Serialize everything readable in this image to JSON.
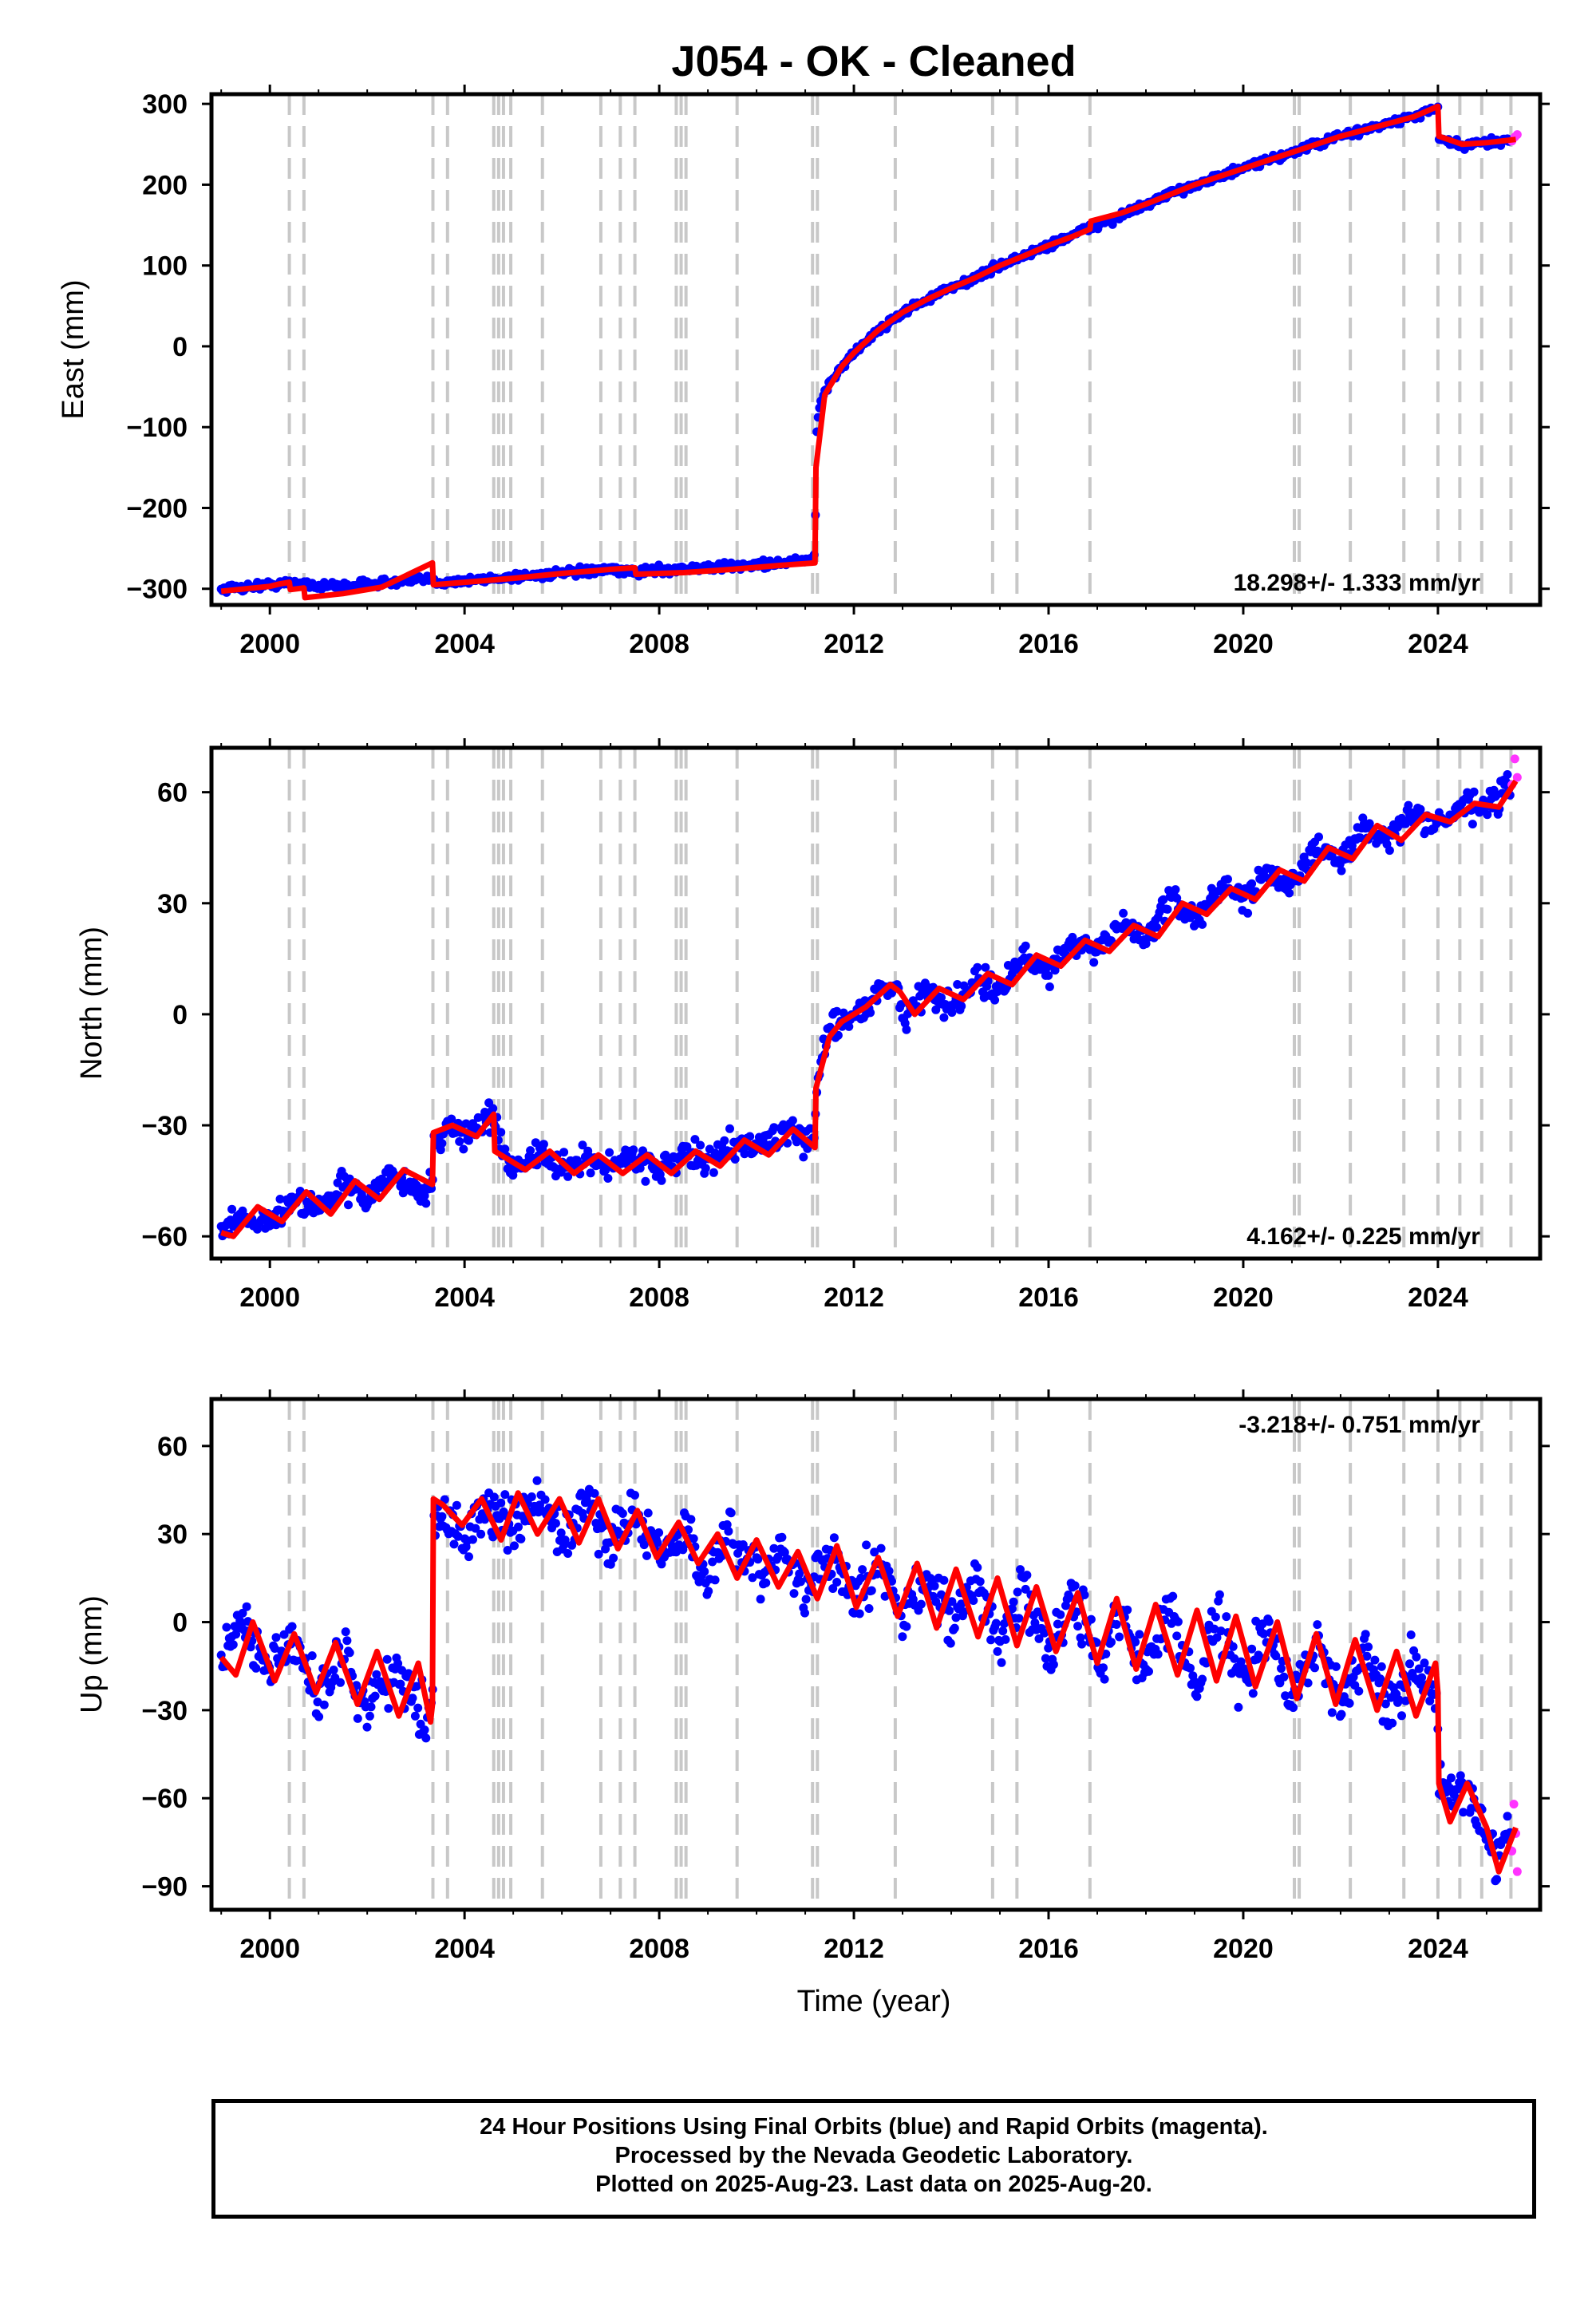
{
  "chart_data": {
    "type": "scatter",
    "title": "J054  - OK - Cleaned",
    "xlabel": "Time (year)",
    "xlim": [
      1998.8,
      2026.1
    ],
    "xticks": [
      "2000",
      "2004",
      "2008",
      "2012",
      "2016",
      "2020",
      "2024"
    ],
    "xtick_values": [
      2000,
      2004,
      2008,
      2012,
      2016,
      2020,
      2024
    ],
    "equipment_changes": [
      2000.4,
      2000.7,
      2003.35,
      2003.65,
      2004.6,
      2004.7,
      2004.8,
      2004.95,
      2005.6,
      2006.8,
      2007.2,
      2007.5,
      2008.35,
      2008.45,
      2008.55,
      2009.6,
      2011.15,
      2011.25,
      2012.85,
      2014.85,
      2015.35,
      2016.85,
      2021.05,
      2021.15,
      2022.2,
      2023.3,
      2024.0,
      2024.45,
      2024.9,
      2025.5
    ],
    "legend": "none",
    "panels": [
      {
        "name": "east",
        "ylabel": "East (mm)",
        "ylim": [
          -320,
          312
        ],
        "yticks": [
          "300",
          "200",
          "100",
          "0",
          "−100",
          "−200",
          "−300"
        ],
        "ytick_values": [
          300,
          200,
          100,
          0,
          -100,
          -200,
          -300
        ],
        "rate_text": "18.298+/- 1.333 mm/yr",
        "rate_position": "bottom-right",
        "series": [
          {
            "name": "Final Orbits (blue)",
            "color": "#0000ff",
            "x": [
              1999.0,
              1999.5,
              2000.0,
              2000.5,
              2000.75,
              2001.0,
              2001.5,
              2002.0,
              2002.5,
              2003.0,
              2003.34,
              2003.36,
              2004.0,
              2004.5,
              2005.0,
              2005.5,
              2006.0,
              2006.5,
              2007.0,
              2007.5,
              2008.0,
              2008.5,
              2009.0,
              2009.5,
              2010.0,
              2010.5,
              2011.0,
              2011.2,
              2011.23,
              2011.3,
              2011.5,
              2011.75,
              2012.0,
              2012.5,
              2013.0,
              2013.5,
              2014.0,
              2014.5,
              2015.0,
              2015.5,
              2016.0,
              2016.5,
              2017.0,
              2017.5,
              2018.0,
              2018.5,
              2019.0,
              2019.5,
              2020.0,
              2020.5,
              2021.0,
              2021.5,
              2022.0,
              2022.5,
              2023.0,
              2023.5,
              2024.0,
              2024.02,
              2024.5,
              2025.0,
              2025.5
            ],
            "y": [
              -300,
              -298,
              -295,
              -293,
              -293,
              -297,
              -296,
              -294,
              -292,
              -290,
              -288,
              -292,
              -290,
              -288,
              -285,
              -283,
              -281,
              -279,
              -277,
              -279,
              -277,
              -275,
              -274,
              -272,
              -270,
              -268,
              -265,
              -262,
              -105,
              -75,
              -45,
              -25,
              -8,
              20,
              42,
              58,
              72,
              85,
              100,
              112,
              125,
              138,
              150,
              162,
              175,
              188,
              200,
              210,
              220,
              230,
              240,
              250,
              260,
              268,
              276,
              284,
              295,
              255,
              248,
              252,
              256
            ]
          },
          {
            "name": "Rapid Orbits (magenta)",
            "color": "#ff33ff",
            "x": [
              2025.52,
              2025.58,
              2025.63
            ],
            "y": [
              254,
              259,
              262
            ]
          },
          {
            "name": "model",
            "color": "#ff0000",
            "x": [
              1999.0,
              2000.0,
              2000.2,
              2000.4,
              2000.42,
              2000.7,
              2000.72,
              2001.5,
              2002.3,
              2003.34,
              2003.36,
              2004.0,
              2005.0,
              2006.0,
              2007.0,
              2007.5,
              2007.52,
              2008.5,
              2009.5,
              2010.5,
              2011.2,
              2011.22,
              2011.4,
              2011.75,
              2012.0,
              2012.5,
              2013.0,
              2013.5,
              2014.0,
              2014.5,
              2015.0,
              2015.5,
              2016.0,
              2016.5,
              2016.85,
              2016.87,
              2017.5,
              2018.0,
              2018.5,
              2019.0,
              2019.5,
              2020.0,
              2020.5,
              2021.0,
              2021.5,
              2022.0,
              2022.5,
              2023.0,
              2023.5,
              2024.0,
              2024.02,
              2024.5,
              2025.0,
              2025.6
            ],
            "y": [
              -303,
              -297,
              -294,
              -292,
              -301,
              -299,
              -311,
              -306,
              -298,
              -268,
              -295,
              -292,
              -287,
              -281,
              -276,
              -274,
              -282,
              -280,
              -276,
              -271,
              -268,
              -150,
              -60,
              -25,
              -8,
              20,
              42,
              58,
              72,
              85,
              100,
              112,
              125,
              136,
              145,
              155,
              165,
              176,
              188,
              200,
              210,
              220,
              230,
              240,
              250,
              260,
              268,
              276,
              284,
              297,
              260,
              250,
              252,
              256
            ]
          }
        ]
      },
      {
        "name": "north",
        "ylabel": "North (mm)",
        "ylim": [
          -66,
          72
        ],
        "yticks": [
          "60",
          "30",
          "0",
          "−30",
          "−60"
        ],
        "ytick_values": [
          60,
          30,
          0,
          -30,
          -60
        ],
        "rate_text": "4.162+/- 0.225 mm/yr",
        "rate_position": "bottom-right",
        "series": [
          {
            "name": "Final Orbits (blue)",
            "color": "#0000ff",
            "x": [
              1999.0,
              1999.5,
              2000.0,
              2000.5,
              2001.0,
              2001.5,
              2002.0,
              2002.5,
              2003.0,
              2003.34,
              2003.36,
              2003.7,
              2004.0,
              2004.5,
              2004.6,
              2004.7,
              2005.0,
              2005.5,
              2006.0,
              2006.5,
              2007.0,
              2007.5,
              2008.0,
              2008.5,
              2009.0,
              2009.5,
              2010.0,
              2010.5,
              2011.0,
              2011.2,
              2011.23,
              2011.5,
              2012.0,
              2012.5,
              2012.9,
              2013.0,
              2013.5,
              2014.0,
              2014.5,
              2015.0,
              2015.5,
              2016.0,
              2016.5,
              2017.0,
              2017.5,
              2018.0,
              2018.5,
              2019.0,
              2019.5,
              2020.0,
              2020.5,
              2021.0,
              2021.5,
              2022.0,
              2022.5,
              2023.0,
              2023.5,
              2024.0,
              2024.5,
              2025.0,
              2025.5
            ],
            "y": [
              -58,
              -54,
              -57,
              -49,
              -53,
              -46,
              -50,
              -43,
              -48,
              -47,
              -35,
              -30,
              -33,
              -28,
              -27,
              -35,
              -41,
              -38,
              -42,
              -39,
              -41,
              -38,
              -42,
              -38,
              -40,
              -35,
              -36,
              -32,
              -34,
              -33,
              -20,
              -2,
              -1,
              6,
              8,
              -1,
              6,
              2,
              10,
              6,
              15,
              12,
              20,
              17,
              24,
              21,
              31,
              26,
              34,
              31,
              39,
              36,
              44,
              42,
              50,
              48,
              54,
              51,
              56,
              56,
              62
            ]
          },
          {
            "name": "Rapid Orbits (magenta)",
            "color": "#ff33ff",
            "x": [
              2025.52,
              2025.58,
              2025.63
            ],
            "y": [
              62,
              69,
              64
            ]
          },
          {
            "name": "model",
            "color": "#ff0000",
            "x": [
              1999.0,
              1999.25,
              1999.75,
              2000.25,
              2000.75,
              2001.25,
              2001.75,
              2002.25,
              2002.75,
              2003.34,
              2003.36,
              2003.75,
              2004.25,
              2004.6,
              2004.62,
              2005.25,
              2005.75,
              2006.25,
              2006.75,
              2007.25,
              2007.75,
              2008.25,
              2008.75,
              2009.25,
              2009.75,
              2010.25,
              2010.75,
              2011.2,
              2011.22,
              2011.5,
              2011.75,
              2012.25,
              2012.75,
              2012.95,
              2013.25,
              2013.75,
              2014.25,
              2014.75,
              2015.25,
              2015.75,
              2016.25,
              2016.75,
              2017.25,
              2017.75,
              2018.25,
              2018.75,
              2019.25,
              2019.75,
              2020.25,
              2020.75,
              2021.25,
              2021.75,
              2022.25,
              2022.75,
              2023.25,
              2023.75,
              2024.25,
              2024.75,
              2025.25,
              2025.6
            ],
            "y": [
              -59,
              -60,
              -52,
              -56,
              -48,
              -54,
              -45,
              -50,
              -42,
              -46,
              -32,
              -30,
              -33,
              -27,
              -37,
              -42,
              -37,
              -43,
              -38,
              -43,
              -38,
              -43,
              -37,
              -41,
              -34,
              -38,
              -31,
              -36,
              -20,
              -6,
              -2,
              2,
              8,
              6,
              0,
              7,
              4,
              11,
              8,
              16,
              13,
              20,
              17,
              24,
              21,
              30,
              27,
              34,
              31,
              39,
              36,
              45,
              42,
              51,
              47,
              54,
              52,
              57,
              56,
              63
            ]
          }
        ]
      },
      {
        "name": "up",
        "ylabel": "Up (mm)",
        "ylim": [
          -98,
          76
        ],
        "yticks": [
          "60",
          "30",
          "0",
          "−30",
          "−60",
          "−90"
        ],
        "ytick_values": [
          60,
          30,
          0,
          -30,
          -60,
          -90
        ],
        "rate_text": "-3.218+/- 0.751 mm/yr",
        "rate_position": "top-right",
        "series": [
          {
            "name": "Final Orbits (blue)",
            "color": "#0000ff",
            "x": [
              1999.0,
              1999.5,
              2000.0,
              2000.5,
              2001.0,
              2001.5,
              2002.0,
              2002.5,
              2003.0,
              2003.34,
              2003.36,
              2003.7,
              2004.0,
              2004.5,
              2005.0,
              2005.5,
              2006.0,
              2006.5,
              2007.0,
              2007.5,
              2008.0,
              2008.5,
              2009.0,
              2009.5,
              2010.0,
              2010.5,
              2011.0,
              2011.5,
              2012.0,
              2012.5,
              2013.0,
              2013.5,
              2014.0,
              2014.5,
              2015.0,
              2015.5,
              2016.0,
              2016.5,
              2017.0,
              2017.5,
              2018.0,
              2018.5,
              2019.0,
              2019.5,
              2020.0,
              2020.5,
              2021.0,
              2021.5,
              2022.0,
              2022.5,
              2023.0,
              2023.5,
              2024.0,
              2024.02,
              2024.5,
              2025.0,
              2025.2,
              2025.5
            ],
            "y": [
              -12,
              0,
              -18,
              -5,
              -26,
              -10,
              -30,
              -14,
              -30,
              -32,
              40,
              35,
              28,
              40,
              30,
              42,
              28,
              40,
              28,
              38,
              22,
              30,
              15,
              28,
              14,
              25,
              10,
              24,
              6,
              21,
              2,
              17,
              -2,
              14,
              -6,
              11,
              -10,
              10,
              -14,
              6,
              -18,
              4,
              -20,
              2,
              -22,
              -2,
              -28,
              -6,
              -28,
              -8,
              -30,
              -12,
              -28,
              -60,
              -55,
              -75,
              -84,
              -68
            ]
          },
          {
            "name": "Rapid Orbits (magenta)",
            "color": "#ff33ff",
            "x": [
              2025.52,
              2025.56,
              2025.6,
              2025.63
            ],
            "y": [
              -78,
              -62,
              -72,
              -85
            ]
          },
          {
            "name": "model",
            "color": "#ff0000",
            "x": [
              1999.0,
              1999.3,
              1999.65,
              2000.1,
              2000.5,
              2000.95,
              2001.35,
              2001.8,
              2002.2,
              2002.65,
              2003.05,
              2003.3,
              2003.34,
              2003.36,
              2003.55,
              2003.95,
              2004.35,
              2004.75,
              2005.1,
              2005.5,
              2005.95,
              2006.35,
              2006.75,
              2007.15,
              2007.55,
              2007.95,
              2008.4,
              2008.8,
              2009.2,
              2009.6,
              2010.0,
              2010.45,
              2010.85,
              2011.25,
              2011.65,
              2012.05,
              2012.5,
              2012.9,
              2013.3,
              2013.7,
              2014.1,
              2014.55,
              2014.95,
              2015.35,
              2015.75,
              2016.15,
              2016.6,
              2017.0,
              2017.4,
              2017.8,
              2018.2,
              2018.65,
              2019.05,
              2019.45,
              2019.85,
              2020.25,
              2020.7,
              2021.1,
              2021.5,
              2021.9,
              2022.3,
              2022.75,
              2023.15,
              2023.55,
              2023.95,
              2024.0,
              2024.02,
              2024.25,
              2024.6,
              2025.0,
              2025.25,
              2025.6
            ],
            "y": [
              -12,
              -18,
              0,
              -20,
              -4,
              -24,
              -7,
              -28,
              -10,
              -32,
              -14,
              -34,
              -28,
              42,
              40,
              33,
              42,
              28,
              44,
              30,
              42,
              27,
              42,
              25,
              38,
              22,
              34,
              20,
              30,
              15,
              28,
              12,
              24,
              8,
              26,
              5,
              22,
              2,
              20,
              -2,
              18,
              -5,
              15,
              -8,
              12,
              -10,
              10,
              -14,
              8,
              -16,
              6,
              -18,
              4,
              -20,
              2,
              -22,
              0,
              -26,
              -4,
              -28,
              -6,
              -30,
              -10,
              -32,
              -14,
              -24,
              -55,
              -68,
              -55,
              -70,
              -85,
              -70
            ]
          }
        ]
      }
    ]
  },
  "footer": {
    "line1": "24 Hour Positions Using Final Orbits (blue) and Rapid Orbits (magenta).",
    "line2": "Processed by the Nevada Geodetic Laboratory.",
    "line3": "Plotted on 2025-Aug-23. Last data on 2025-Aug-20."
  }
}
